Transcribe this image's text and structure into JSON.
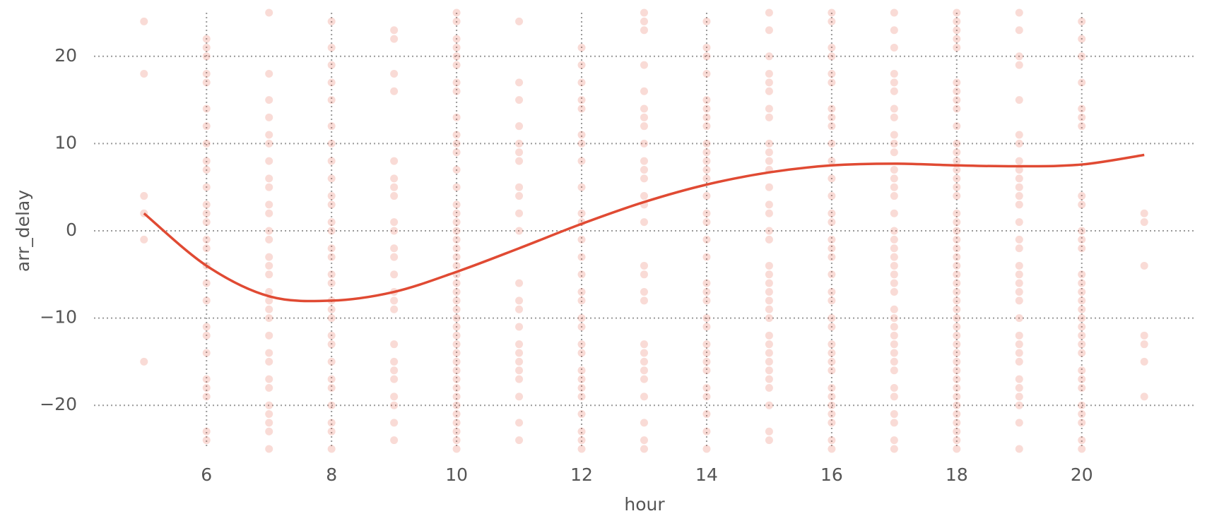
{
  "chart_data": {
    "type": "scatter",
    "x_label": "hour",
    "y_label": "arr_delay",
    "xlim": [
      4.2,
      21.8
    ],
    "ylim": [
      -25,
      25
    ],
    "xticks": [
      6,
      8,
      10,
      12,
      14,
      16,
      18,
      20
    ],
    "yticks": [
      {
        "value": -20,
        "label": "−20"
      },
      {
        "value": -10,
        "label": "−10"
      },
      0,
      10,
      20
    ],
    "grid": true,
    "point_color": "#e34a33",
    "point_alpha": 0.2,
    "groups": [
      {
        "x": 5,
        "values": [
          24,
          18,
          4,
          2,
          -1,
          -15
        ]
      },
      {
        "x": 6,
        "values": [
          22,
          21,
          20,
          18,
          17,
          14,
          12,
          10,
          8,
          7,
          5,
          3,
          2,
          1,
          -1,
          -2,
          -4,
          -6,
          -8,
          -11,
          -12,
          -14,
          -17,
          -18,
          -19,
          -23,
          -24
        ]
      },
      {
        "x": 7,
        "values": [
          25,
          18,
          15,
          13,
          11,
          10,
          8,
          6,
          5,
          3,
          2,
          0,
          -1,
          -3,
          -4,
          -5,
          -7,
          -8,
          -9,
          -10,
          -12,
          -14,
          -15,
          -17,
          -18,
          -20,
          -21,
          -22,
          -23,
          -25
        ]
      },
      {
        "x": 8,
        "values": [
          24,
          21,
          19,
          17,
          15,
          12,
          10,
          8,
          6,
          4,
          3,
          1,
          0,
          -2,
          -3,
          -5,
          -6,
          -8,
          -9,
          -10,
          -12,
          -13,
          -15,
          -17,
          -18,
          -20,
          -22,
          -23,
          -25
        ]
      },
      {
        "x": 9,
        "values": [
          23,
          22,
          18,
          16,
          8,
          6,
          5,
          4,
          1,
          0,
          -2,
          -3,
          -5,
          -7,
          -8,
          -9,
          -13,
          -15,
          -16,
          -17,
          -19,
          -20,
          -22,
          -24
        ]
      },
      {
        "x": 10,
        "values": [
          25,
          24,
          22,
          21,
          20,
          19,
          17,
          16,
          13,
          11,
          10,
          9,
          7,
          5,
          3,
          2,
          1,
          0,
          -1,
          -2,
          -3,
          -4,
          -5,
          -6,
          -7,
          -8,
          -9,
          -10,
          -11,
          -12,
          -13,
          -14,
          -15,
          -16,
          -17,
          -18,
          -19,
          -20,
          -21,
          -22,
          -23,
          -24,
          -25
        ]
      },
      {
        "x": 11,
        "values": [
          24,
          17,
          15,
          12,
          10,
          9,
          8,
          5,
          4,
          2,
          0,
          -6,
          -8,
          -9,
          -11,
          -13,
          -14,
          -15,
          -16,
          -17,
          -19,
          -22,
          -24
        ]
      },
      {
        "x": 12,
        "values": [
          21,
          19,
          17,
          15,
          14,
          11,
          10,
          8,
          5,
          2,
          1,
          -1,
          -3,
          -5,
          -7,
          -8,
          -10,
          -11,
          -13,
          -14,
          -16,
          -17,
          -18,
          -19,
          -21,
          -23,
          -24,
          -25
        ]
      },
      {
        "x": 13,
        "values": [
          25,
          24,
          23,
          19,
          16,
          14,
          13,
          12,
          10,
          8,
          7,
          6,
          4,
          3,
          1,
          -4,
          -5,
          -7,
          -8,
          -13,
          -14,
          -15,
          -16,
          -17,
          -19,
          -22,
          -24,
          -25
        ]
      },
      {
        "x": 14,
        "values": [
          24,
          21,
          20,
          18,
          15,
          14,
          13,
          12,
          10,
          9,
          8,
          7,
          6,
          4,
          2,
          1,
          -1,
          -3,
          -6,
          -7,
          -8,
          -10,
          -11,
          -13,
          -14,
          -15,
          -16,
          -18,
          -19,
          -21,
          -23,
          -25
        ]
      },
      {
        "x": 15,
        "values": [
          25,
          23,
          20,
          18,
          17,
          16,
          14,
          13,
          10,
          9,
          8,
          7,
          5,
          3,
          2,
          0,
          -1,
          -4,
          -5,
          -6,
          -7,
          -8,
          -9,
          -10,
          -12,
          -13,
          -14,
          -15,
          -16,
          -17,
          -18,
          -20,
          -23,
          -24
        ]
      },
      {
        "x": 16,
        "values": [
          25,
          24,
          21,
          20,
          18,
          17,
          14,
          13,
          12,
          10,
          8,
          6,
          4,
          2,
          1,
          -1,
          -2,
          -3,
          -5,
          -7,
          -8,
          -10,
          -11,
          -13,
          -14,
          -15,
          -16,
          -18,
          -19,
          -20,
          -21,
          -22,
          -24,
          -25
        ]
      },
      {
        "x": 17,
        "values": [
          25,
          23,
          21,
          18,
          17,
          16,
          14,
          13,
          11,
          10,
          9,
          7,
          6,
          5,
          4,
          2,
          0,
          -1,
          -2,
          -3,
          -4,
          -5,
          -6,
          -7,
          -9,
          -10,
          -11,
          -12,
          -13,
          -14,
          -15,
          -16,
          -18,
          -19,
          -21,
          -22,
          -24,
          -25
        ]
      },
      {
        "x": 18,
        "values": [
          25,
          24,
          23,
          22,
          21,
          17,
          16,
          15,
          14,
          12,
          10,
          9,
          8,
          7,
          6,
          5,
          4,
          2,
          1,
          0,
          -1,
          -2,
          -3,
          -4,
          -5,
          -6,
          -7,
          -8,
          -9,
          -10,
          -11,
          -12,
          -13,
          -14,
          -15,
          -16,
          -17,
          -18,
          -19,
          -20,
          -21,
          -22,
          -23,
          -24,
          -25
        ]
      },
      {
        "x": 19,
        "values": [
          25,
          23,
          20,
          19,
          15,
          11,
          10,
          8,
          7,
          6,
          5,
          4,
          3,
          1,
          -1,
          -2,
          -4,
          -5,
          -6,
          -7,
          -8,
          -10,
          -12,
          -13,
          -14,
          -15,
          -17,
          -18,
          -19,
          -20,
          -22,
          -25
        ]
      },
      {
        "x": 20,
        "values": [
          24,
          22,
          20,
          17,
          14,
          13,
          12,
          4,
          3,
          0,
          -1,
          -2,
          -5,
          -6,
          -7,
          -8,
          -9,
          -10,
          -11,
          -12,
          -13,
          -14,
          -16,
          -17,
          -18,
          -20,
          -21,
          -22,
          -24,
          -25
        ]
      },
      {
        "x": 21,
        "values": [
          2,
          1,
          -4,
          -12,
          -13,
          -15,
          -19
        ]
      }
    ],
    "trend": {
      "color": "#e04a33",
      "x": [
        5,
        6,
        7,
        8,
        9,
        10,
        11,
        12,
        13,
        14,
        15,
        16,
        17,
        18,
        19,
        20,
        21
      ],
      "y": [
        2,
        -4,
        -7.5,
        -8,
        -7,
        -4.7,
        -2,
        0.8,
        3.3,
        5.3,
        6.7,
        7.5,
        7.7,
        7.5,
        7.4,
        7.6,
        8.7
      ]
    }
  }
}
